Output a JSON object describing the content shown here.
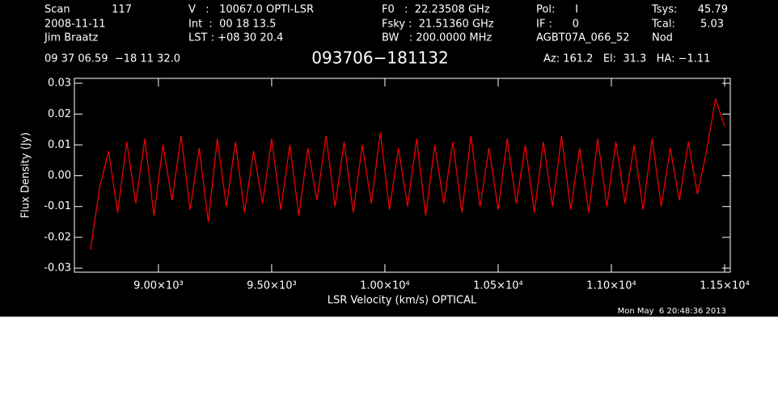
{
  "header": {
    "items": [
      "Scan",
      "117",
      "2008-11-11",
      "Jim Braatz",
      "V   :   10067.0 OPTI-LSR",
      "Int  :  00 18 13.5",
      "LST : +08 30 20.4",
      "F0   :  22.23508 GHz",
      "Fsky :  21.51360 GHz",
      "BW   : 200.0000 MHz",
      "Pol:      I",
      "IF :      0",
      "AGBT07A_066_52",
      "Tsys:",
      "45.79",
      "Tcal:",
      "5.03",
      "Nod",
      "09 37 06.59  −18 11 32.0",
      "Az: 161.2   El:  31.3   HA: −1.11"
    ],
    "footer": "Mon May  6 20:48:36 2013"
  },
  "chart_data": {
    "type": "line",
    "title": "093706−181132",
    "x_label": "LSR Velocity (km/s) OPTICAL",
    "y_label": "Flux Density (Jy)",
    "xlim": [
      8629,
      11525
    ],
    "ylim": [
      -0.0313,
      0.0316
    ],
    "xticks": [
      {
        "value": 9000,
        "label": "9.00×10³"
      },
      {
        "value": 9500,
        "label": "9.50×10³"
      },
      {
        "value": 10000,
        "label": "1.00×10⁴"
      },
      {
        "value": 10500,
        "label": "1.05×10⁴"
      },
      {
        "value": 11000,
        "label": "1.10×10⁴"
      },
      {
        "value": 11500,
        "label": "1.15×10⁴"
      }
    ],
    "yticks": [
      -0.03,
      -0.02,
      -0.01,
      {
        "value": 0,
        "label": "0.00"
      },
      0.01,
      0.02,
      0.03
    ],
    "x": [
      8700,
      8740,
      8780,
      8820,
      8860,
      8900,
      8940,
      8980,
      9020,
      9060,
      9100,
      9140,
      9180,
      9220,
      9260,
      9300,
      9340,
      9380,
      9420,
      9460,
      9500,
      9540,
      9580,
      9620,
      9660,
      9700,
      9740,
      9780,
      9820,
      9860,
      9900,
      9940,
      9980,
      10020,
      10060,
      10100,
      10140,
      10180,
      10220,
      10260,
      10300,
      10340,
      10380,
      10420,
      10460,
      10500,
      10540,
      10580,
      10620,
      10660,
      10700,
      10740,
      10780,
      10820,
      10860,
      10900,
      10940,
      10980,
      11020,
      11060,
      11100,
      11140,
      11180,
      11220,
      11260,
      11300,
      11340,
      11380,
      11420,
      11460,
      11500
    ],
    "series": [
      {
        "color": "#ff0000",
        "values": [
          -0.024,
          -0.004,
          0.008,
          -0.012,
          0.011,
          -0.009,
          0.012,
          -0.013,
          0.01,
          -0.008,
          0.013,
          -0.011,
          0.009,
          -0.015,
          0.012,
          -0.01,
          0.011,
          -0.012,
          0.008,
          -0.009,
          0.012,
          -0.011,
          0.01,
          -0.013,
          0.009,
          -0.008,
          0.013,
          -0.01,
          0.011,
          -0.012,
          0.01,
          -0.009,
          0.014,
          -0.011,
          0.009,
          -0.01,
          0.012,
          -0.013,
          0.01,
          -0.009,
          0.011,
          -0.012,
          0.013,
          -0.01,
          0.009,
          -0.011,
          0.012,
          -0.009,
          0.01,
          -0.012,
          0.011,
          -0.01,
          0.013,
          -0.011,
          0.009,
          -0.012,
          0.012,
          -0.01,
          0.011,
          -0.009,
          0.01,
          -0.011,
          0.012,
          -0.01,
          0.009,
          -0.008,
          0.011,
          -0.006,
          0.008,
          0.025,
          0.016
        ]
      }
    ]
  }
}
